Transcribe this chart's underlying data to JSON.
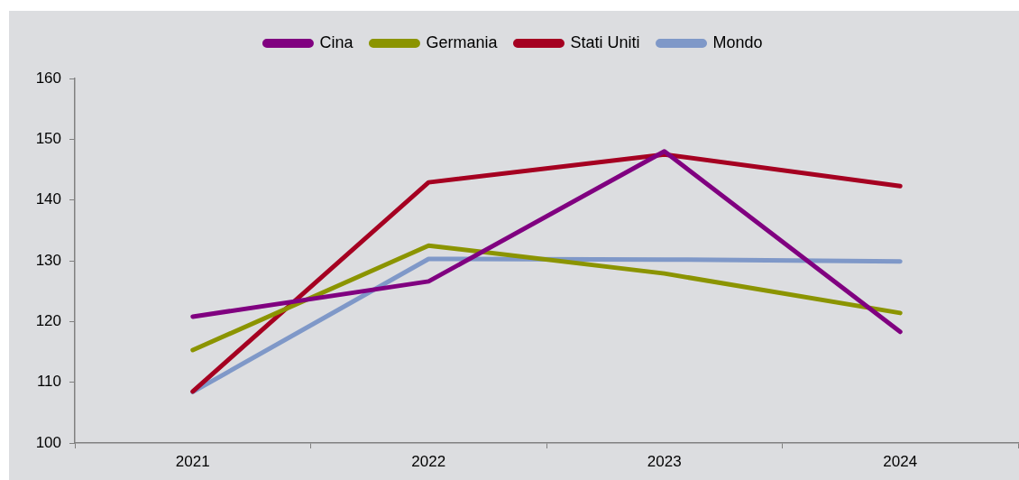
{
  "chart_data": {
    "type": "line",
    "categories": [
      "2021",
      "2022",
      "2023",
      "2024"
    ],
    "series": [
      {
        "name": "Cina",
        "color": "#800080",
        "values": [
          120.8,
          126.6,
          148.0,
          118.3
        ]
      },
      {
        "name": "Germania",
        "color": "#8b9400",
        "values": [
          115.3,
          132.5,
          127.9,
          121.4
        ]
      },
      {
        "name": "Stati Uniti",
        "color": "#a50021",
        "values": [
          108.5,
          142.9,
          147.5,
          142.3
        ]
      },
      {
        "name": "Mondo",
        "color": "#7f98c8",
        "values": [
          108.4,
          130.3,
          130.2,
          129.9
        ]
      }
    ],
    "ylim": [
      100,
      160
    ],
    "yticks": [
      100,
      110,
      120,
      130,
      140,
      150,
      160
    ],
    "legend": "top",
    "grid": false,
    "marker": "none",
    "line_style": "solid"
  }
}
